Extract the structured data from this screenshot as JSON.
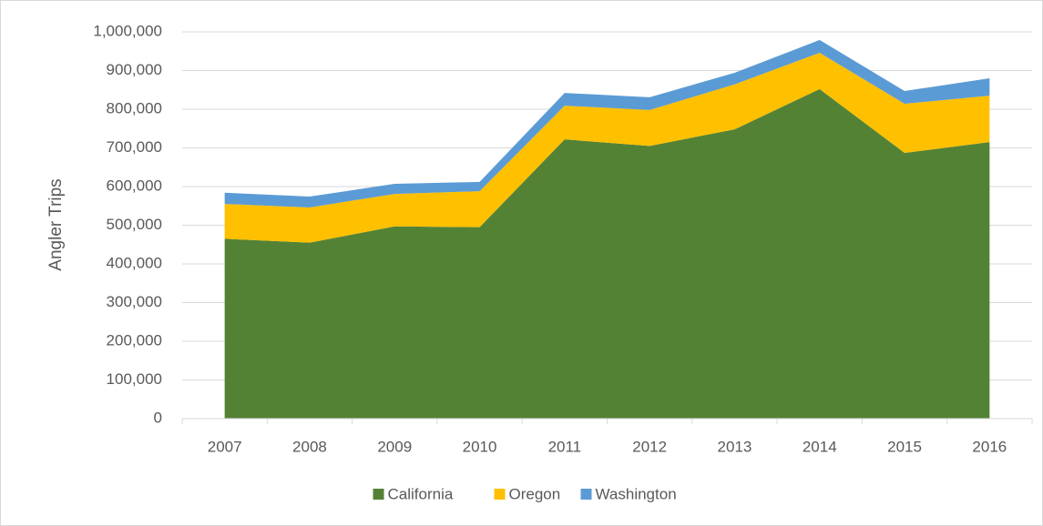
{
  "chart_data": {
    "type": "stacked_area",
    "y_label": "Angler Trips",
    "categories": [
      "2007",
      "2008",
      "2009",
      "2010",
      "2011",
      "2012",
      "2013",
      "2014",
      "2015",
      "2016"
    ],
    "series": [
      {
        "name": "California",
        "color": "#548235",
        "values": [
          465000,
          455000,
          497000,
          495000,
          722000,
          705000,
          748000,
          852000,
          687000,
          715000
        ]
      },
      {
        "name": "Oregon",
        "color": "#ffc000",
        "values": [
          90000,
          91000,
          84000,
          93000,
          87000,
          93000,
          116000,
          94000,
          127000,
          120000
        ]
      },
      {
        "name": "Washington",
        "color": "#5b9bd5",
        "values": [
          29000,
          28000,
          26000,
          24000,
          33000,
          33000,
          30000,
          33000,
          33000,
          45000
        ]
      }
    ],
    "ylim": [
      0,
      1000000
    ],
    "yticks": [
      0,
      {
        "value": 100000,
        "label": "100,000"
      },
      {
        "value": 200000,
        "label": "200,000"
      },
      {
        "value": 300000,
        "label": "300,000"
      },
      {
        "value": 400000,
        "label": "400,000"
      },
      {
        "value": 500000,
        "label": "500,000"
      },
      {
        "value": 600000,
        "label": "600,000"
      },
      {
        "value": 700000,
        "label": "700,000"
      },
      {
        "value": 800000,
        "label": "800,000"
      },
      {
        "value": 900000,
        "label": "900,000"
      },
      {
        "value": 1000000,
        "label": "1,000,000"
      }
    ],
    "grid": true,
    "legend": "bottom"
  }
}
